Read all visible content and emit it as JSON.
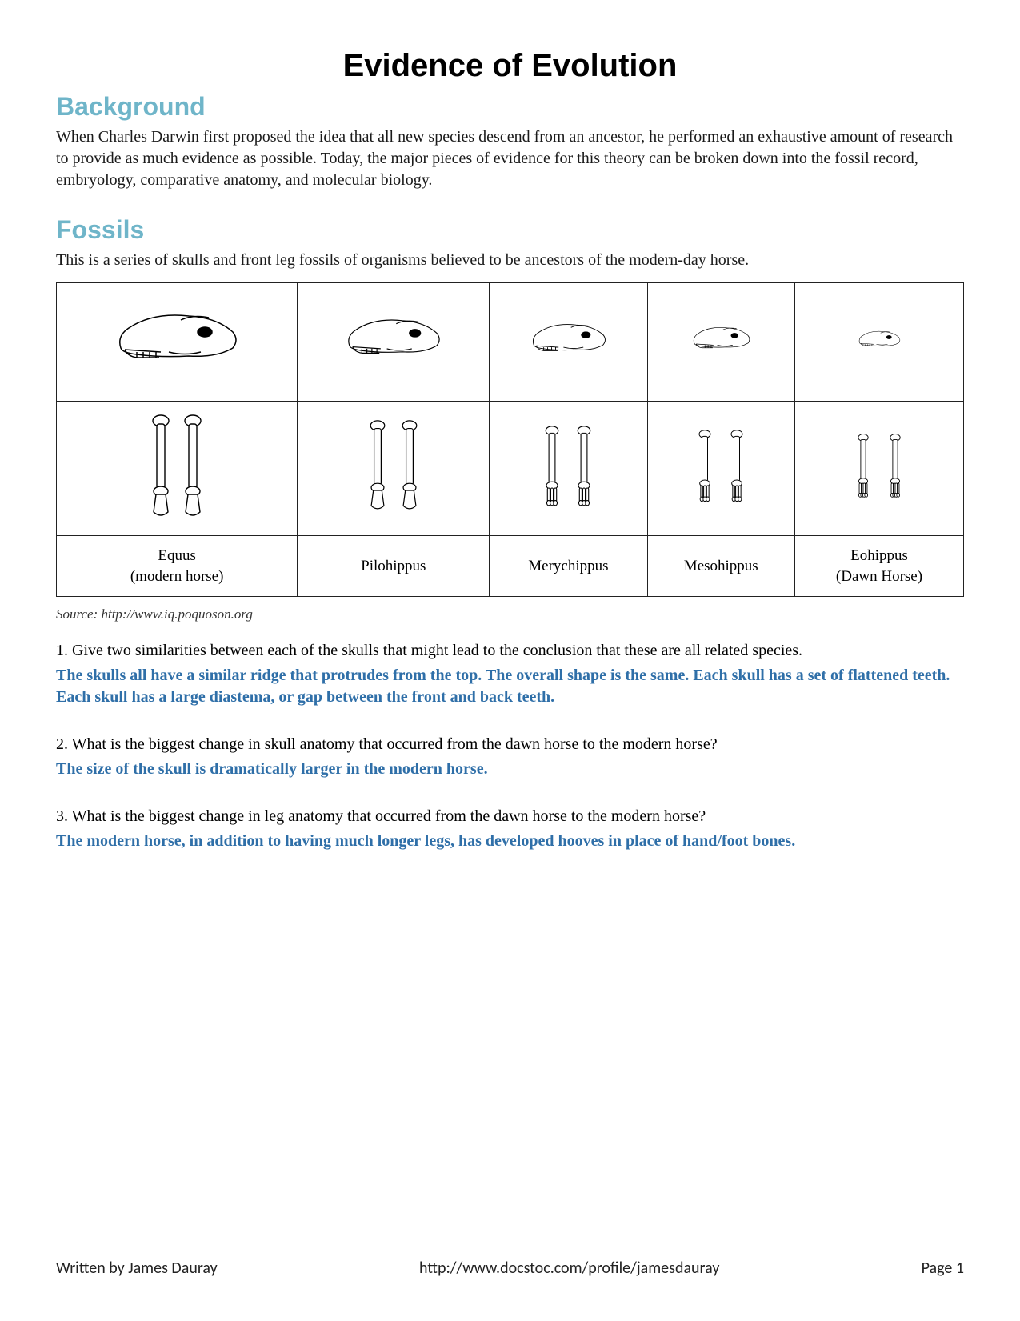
{
  "title": "Evidence of Evolution",
  "sections": {
    "background": {
      "heading": "Background",
      "text": "When Charles Darwin first proposed the idea that all new species descend from an ancestor, he performed an exhaustive amount of research to provide as much evidence as possible.  Today, the major pieces of evidence for this theory can be broken down into the fossil record, embryology, comparative anatomy, and molecular biology."
    },
    "fossils": {
      "heading": "Fossils",
      "intro": "This is a series of skulls and front leg fossils of organisms believed to be ancestors of the modern-day horse.",
      "table": {
        "columns": [
          {
            "label_line1": "Equus",
            "label_line2": "(modern horse)",
            "skull_scale": 1.0,
            "leg_scale": 1.0,
            "toes": 1
          },
          {
            "label_line1": "Pilohippus",
            "label_line2": "",
            "skull_scale": 0.78,
            "leg_scale": 0.88,
            "toes": 1
          },
          {
            "label_line1": "Merychippus",
            "label_line2": "",
            "skull_scale": 0.62,
            "leg_scale": 0.78,
            "toes": 3
          },
          {
            "label_line1": "Mesohippus",
            "label_line2": "",
            "skull_scale": 0.48,
            "leg_scale": 0.7,
            "toes": 3
          },
          {
            "label_line1": "Eohippus",
            "label_line2": "(Dawn Horse)",
            "skull_scale": 0.35,
            "leg_scale": 0.62,
            "toes": 4
          }
        ],
        "border_color": "#222222",
        "cell_background": "#ffffff"
      },
      "source": "Source:  http://www.iq.poquoson.org",
      "questions": [
        {
          "q": "1.  Give two similarities between each of the skulls that might lead to the conclusion that these are all related species.",
          "a": "The skulls all have a similar ridge that protrudes from the top.  The overall shape is the same.  Each skull has a set of flattened teeth.  Each skull has a large diastema, or gap between the front and back teeth."
        },
        {
          "q": "2.  What is the biggest change in skull anatomy that occurred from the dawn horse to the modern horse?",
          "a": "The size of the skull is dramatically larger in the modern horse."
        },
        {
          "q": "3. What is the biggest change in leg anatomy that occurred from the dawn horse to the modern horse?",
          "a": "The modern horse, in addition to having much longer legs, has developed hooves in place of hand/foot bones."
        }
      ]
    }
  },
  "footer": {
    "author": "Written by James Dauray",
    "url": "http://www.docstoc.com/profile/jamesdauray",
    "page": "Page 1"
  },
  "colors": {
    "heading": "#6fb5c9",
    "answer": "#2f6fa8",
    "text": "#1a1a1a",
    "background": "#ffffff"
  },
  "fonts": {
    "title": {
      "family": "Arial",
      "size_pt": 30,
      "weight": "bold"
    },
    "heading": {
      "family": "Arial",
      "size_pt": 24,
      "weight": "bold"
    },
    "body": {
      "family": "Georgia",
      "size_pt": 15
    },
    "answer": {
      "family": "Georgia",
      "size_pt": 15,
      "weight": "bold"
    },
    "footer": {
      "family": "Calibri",
      "size_pt": 15
    }
  }
}
